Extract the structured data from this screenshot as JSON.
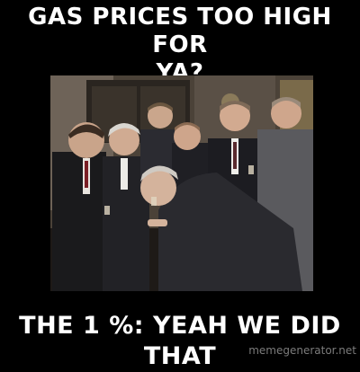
{
  "caption": {
    "top_line1": "GAS PRICES TOO HIGH FOR",
    "top_line2": "YA?",
    "bottom": "THE 1 %: YEAH WE DID THAT"
  },
  "watermark": "memegenerator.net",
  "photo": {
    "subject": "group-of-laughing-men-in-suits"
  }
}
